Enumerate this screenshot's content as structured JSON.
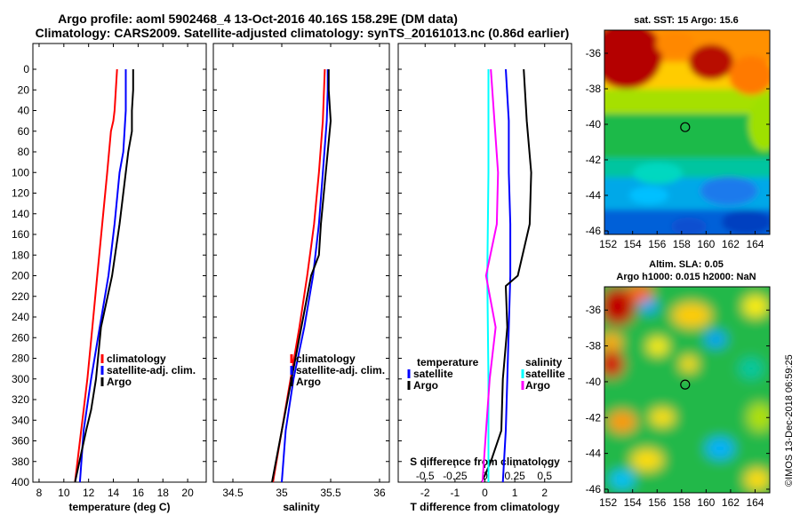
{
  "title_line1": "Argo profile: aoml 5902468_4 13-Oct-2016 40.16S 158.29E (DM data)",
  "title_line2": "Climatology: CARS2009. Satellite-adjusted climatology: synTS_20161013.nc (0.86d earlier)",
  "watermark": "©IMOS 13-Dec-2018 06:59:25",
  "colors": {
    "red": "#ff0000",
    "blue": "#0000ff",
    "black": "#000000",
    "cyan": "#00ffff",
    "magenta": "#ff00ff"
  },
  "chart_data": [
    {
      "id": "temperature",
      "type": "line",
      "xlabel": "temperature (deg C)",
      "ylabel": "",
      "xlim": [
        7.5,
        21.5
      ],
      "ylim": [
        400,
        0
      ],
      "xticks": [
        8,
        10,
        12,
        14,
        16,
        18,
        20
      ],
      "yticks": [
        0,
        20,
        40,
        60,
        80,
        100,
        120,
        140,
        160,
        180,
        200,
        220,
        240,
        260,
        280,
        300,
        320,
        340,
        360,
        380,
        400
      ],
      "legend": {
        "position": "center-right",
        "items": [
          {
            "label": "climatology",
            "color": "#ff0000"
          },
          {
            "label": "satellite-adj. clim.",
            "color": "#0000ff"
          },
          {
            "label": "Argo",
            "color": "#000000"
          }
        ]
      },
      "series": [
        {
          "name": "climatology",
          "color": "#ff0000",
          "depth": [
            0,
            20,
            40,
            50,
            60,
            100,
            150,
            200,
            250,
            300,
            350,
            400
          ],
          "values": [
            14.3,
            14.2,
            14.1,
            14.0,
            13.8,
            13.5,
            13.1,
            12.7,
            12.3,
            11.9,
            11.4,
            10.9
          ]
        },
        {
          "name": "satellite-adj. clim.",
          "color": "#0000ff",
          "depth": [
            0,
            20,
            40,
            60,
            80,
            100,
            150,
            200,
            250,
            300,
            350,
            400
          ],
          "values": [
            15.0,
            15.0,
            15.0,
            14.9,
            14.8,
            14.5,
            14.1,
            13.6,
            12.9,
            12.2,
            11.6,
            11.3
          ]
        },
        {
          "name": "Argo",
          "color": "#000000",
          "depth": [
            0,
            20,
            40,
            60,
            80,
            100,
            150,
            200,
            250,
            300,
            330,
            350,
            400
          ],
          "values": [
            15.6,
            15.6,
            15.5,
            15.5,
            15.2,
            15.0,
            14.5,
            13.9,
            13.0,
            12.6,
            12.2,
            11.8,
            10.9
          ]
        }
      ]
    },
    {
      "id": "salinity",
      "type": "line",
      "xlabel": "salinity",
      "ylabel": "",
      "xlim": [
        34.3,
        36.1
      ],
      "ylim": [
        400,
        0
      ],
      "xticks": [
        34.5,
        35,
        35.5,
        36
      ],
      "xticklabels": [
        "34.5",
        "35",
        "35.5",
        "36"
      ],
      "legend": {
        "position": "center-right",
        "items": [
          {
            "label": "climatology",
            "color": "#ff0000"
          },
          {
            "label": "satellite-adj. clim.",
            "color": "#0000ff"
          },
          {
            "label": "Argo",
            "color": "#000000"
          }
        ]
      },
      "series": [
        {
          "name": "climatology",
          "color": "#ff0000",
          "depth": [
            0,
            50,
            100,
            150,
            200,
            250,
            300,
            350,
            400
          ],
          "values": [
            35.44,
            35.42,
            35.38,
            35.33,
            35.26,
            35.18,
            35.09,
            35.0,
            34.91
          ]
        },
        {
          "name": "satellite-adj. clim.",
          "color": "#0000ff",
          "depth": [
            0,
            20,
            50,
            100,
            150,
            200,
            250,
            300,
            350,
            400
          ],
          "values": [
            35.47,
            35.47,
            35.46,
            35.42,
            35.38,
            35.32,
            35.23,
            35.12,
            35.04,
            35.0
          ]
        },
        {
          "name": "Argo",
          "color": "#000000",
          "depth": [
            0,
            20,
            50,
            100,
            150,
            180,
            200,
            250,
            300,
            350,
            400
          ],
          "values": [
            35.48,
            35.48,
            35.5,
            35.45,
            35.4,
            35.38,
            35.3,
            35.2,
            35.1,
            35.0,
            34.9
          ]
        }
      ]
    },
    {
      "id": "difference",
      "type": "line",
      "xlabel": "T difference from climatology",
      "xlim": [
        -2.9,
        2.9
      ],
      "ylim": [
        400,
        0
      ],
      "xticks": [
        -2,
        -1,
        0,
        1,
        2
      ],
      "xticklabels": [
        "-2",
        "-1",
        "0",
        "1",
        "2"
      ],
      "secondary_xlabel": "S difference from climatology",
      "secondary_xticks": [
        -0.5,
        -0.25,
        0,
        0.25,
        0.5
      ],
      "secondary_xticklabels": [
        "-0.5",
        "-0.25",
        "0",
        "0.25",
        "0.5"
      ],
      "legend": {
        "position": "center",
        "groups": [
          {
            "title": "temperature",
            "items": [
              {
                "label": "satellite",
                "color": "#0000ff"
              },
              {
                "label": "Argo",
                "color": "#000000"
              }
            ]
          },
          {
            "title": "salinity",
            "items": [
              {
                "label": "satellite",
                "color": "#00ffff"
              },
              {
                "label": "Argo",
                "color": "#ff00ff"
              }
            ]
          }
        ]
      },
      "series": [
        {
          "name": "temperature satellite",
          "color": "#0000ff",
          "depth": [
            0,
            50,
            100,
            150,
            200,
            250,
            300,
            350,
            400
          ],
          "values": [
            0.7,
            0.8,
            0.8,
            0.85,
            0.85,
            0.8,
            0.75,
            0.7,
            0.6
          ]
        },
        {
          "name": "temperature Argo",
          "color": "#000000",
          "depth": [
            0,
            50,
            100,
            150,
            200,
            210,
            250,
            300,
            350,
            380,
            400
          ],
          "values": [
            1.3,
            1.4,
            1.55,
            1.5,
            1.1,
            0.7,
            0.75,
            0.6,
            0.55,
            0.2,
            -0.1
          ]
        },
        {
          "name": "salinity satellite",
          "color": "#00ffff",
          "depth": [
            0,
            100,
            200,
            300,
            400
          ],
          "values": [
            0.03,
            0.03,
            0.02,
            0.03,
            0.03
          ]
        },
        {
          "name": "salinity Argo",
          "color": "#ff00ff",
          "depth": [
            0,
            100,
            150,
            200,
            250,
            300,
            350,
            400
          ],
          "values": [
            0.05,
            0.11,
            0.1,
            0.01,
            0.09,
            0.04,
            0.01,
            -0.02
          ]
        }
      ]
    },
    {
      "id": "sst_map",
      "type": "heatmap",
      "title": "sat. SST: 15 Argo: 15.6",
      "xlim": [
        151.7,
        165.2
      ],
      "ylim": [
        -46.2,
        -34.7
      ],
      "xticks": [
        152,
        154,
        156,
        158,
        160,
        162,
        164
      ],
      "yticks": [
        -36,
        -38,
        -40,
        -42,
        -44,
        -46
      ],
      "marker": {
        "lon": 158.29,
        "lat": -40.16
      }
    },
    {
      "id": "sla_map",
      "type": "heatmap",
      "title": "Altim. SLA: 0.05",
      "subtitle": "Argo h1000: 0.015 h2000: NaN",
      "xlim": [
        151.7,
        165.2
      ],
      "ylim": [
        -46.2,
        -34.7
      ],
      "xticks": [
        152,
        154,
        156,
        158,
        160,
        162,
        164
      ],
      "yticks": [
        -36,
        -38,
        -40,
        -42,
        -44,
        -46
      ],
      "marker": {
        "lon": 158.29,
        "lat": -40.16
      }
    }
  ]
}
